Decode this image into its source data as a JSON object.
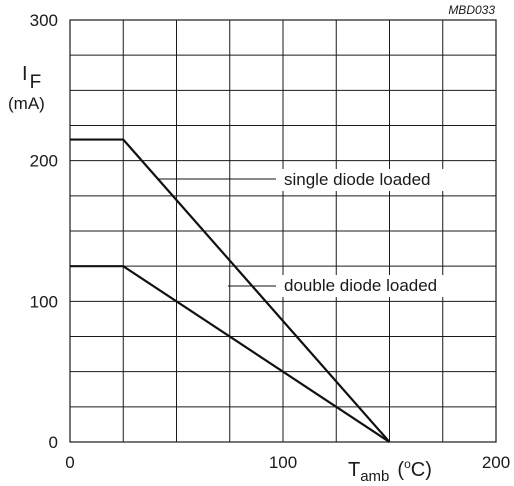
{
  "figure_ref": "MBD033",
  "chart_data": {
    "type": "line",
    "ylabel_symbol": "I",
    "ylabel_subscript": "F",
    "ylabel_unit": "(mA)",
    "xlabel_symbol": "T",
    "xlabel_subscript": "amb",
    "xlabel_unit_open": "(",
    "xlabel_unit_sup": "o",
    "xlabel_unit_rest": "C)",
    "xlim": [
      0,
      200
    ],
    "ylim": [
      0,
      300
    ],
    "x_ticks": [
      "0",
      "100",
      "200"
    ],
    "y_ticks": [
      "0",
      "100",
      "200",
      "300"
    ],
    "grid": true,
    "x_grid_step": 25,
    "y_grid_step": 25,
    "series": [
      {
        "name": "single diode loaded",
        "x": [
          0,
          25,
          150
        ],
        "y": [
          215,
          215,
          0
        ]
      },
      {
        "name": "double diode loaded",
        "x": [
          0,
          25,
          150
        ],
        "y": [
          125,
          125,
          0
        ]
      }
    ]
  }
}
